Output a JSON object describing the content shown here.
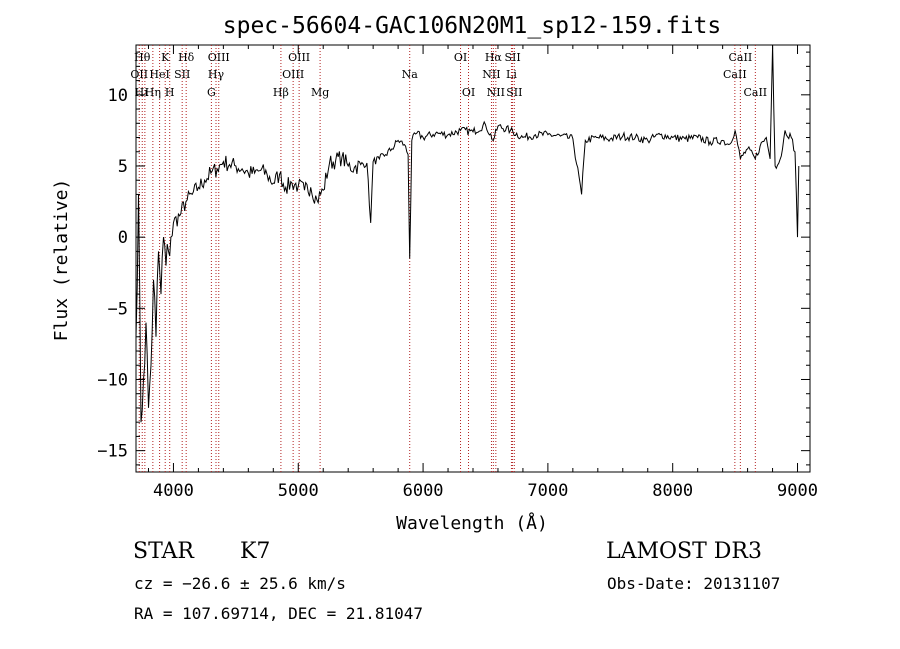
{
  "chart_data": {
    "type": "line",
    "title": "spec-56604-GAC106N20M1_sp12-159.fits",
    "xlabel": "Wavelength (Å)",
    "ylabel": "Flux (relative)",
    "xlim": [
      3700,
      9100
    ],
    "ylim": [
      -16.5,
      13.5
    ],
    "xticks": [
      4000,
      5000,
      6000,
      7000,
      8000,
      9000
    ],
    "yticks": [
      -15,
      -10,
      -5,
      0,
      5,
      10
    ],
    "series": [
      {
        "name": "spectrum",
        "x": [
          3700,
          3720,
          3740,
          3760,
          3780,
          3800,
          3820,
          3840,
          3860,
          3880,
          3900,
          3920,
          3940,
          3960,
          3980,
          4000,
          4050,
          4100,
          4150,
          4200,
          4250,
          4300,
          4350,
          4400,
          4450,
          4500,
          4550,
          4600,
          4650,
          4700,
          4750,
          4800,
          4850,
          4900,
          4950,
          5000,
          5050,
          5100,
          5150,
          5200,
          5250,
          5300,
          5350,
          5400,
          5450,
          5500,
          5550,
          5580,
          5600,
          5650,
          5700,
          5750,
          5800,
          5850,
          5880,
          5893,
          5910,
          5950,
          6000,
          6100,
          6200,
          6300,
          6400,
          6500,
          6563,
          6600,
          6700,
          6800,
          6900,
          7000,
          7100,
          7200,
          7270,
          7300,
          7400,
          7500,
          7600,
          7700,
          7800,
          7900,
          8000,
          8100,
          8200,
          8300,
          8400,
          8450,
          8500,
          8542,
          8600,
          8662,
          8700,
          8750,
          8780,
          8800,
          8820,
          8850,
          8880,
          8900,
          8950,
          8980,
          9000,
          9010
        ],
        "values": [
          -7,
          3,
          -13,
          -10,
          -6,
          -12,
          -9,
          -3,
          -7,
          -1,
          -4,
          0,
          -2,
          -1,
          0,
          1,
          1.5,
          2.5,
          3,
          3.5,
          4,
          4.5,
          4.8,
          5.3,
          5.1,
          5,
          4.8,
          4.5,
          4.5,
          4.7,
          4.4,
          3.8,
          4.4,
          3.5,
          3.8,
          3.6,
          3.3,
          3.5,
          2.6,
          3.3,
          5.2,
          5.4,
          5.6,
          5,
          4.9,
          5.1,
          5.2,
          1,
          5.3,
          5.5,
          5.8,
          6.2,
          6.8,
          6.5,
          5.8,
          -1.5,
          6.8,
          7.3,
          7,
          7.3,
          7.2,
          7.5,
          7.4,
          7.9,
          6.8,
          7.8,
          7.5,
          7,
          7.2,
          7.2,
          7.1,
          6.9,
          3,
          6.8,
          7,
          6.9,
          7.1,
          7,
          6.8,
          7.2,
          7,
          6.9,
          7,
          6.7,
          6.8,
          6.5,
          7.5,
          5.5,
          6.2,
          5.5,
          6.4,
          7,
          5.5,
          13.5,
          5,
          5.2,
          6.2,
          7.5,
          7,
          6,
          0,
          5
        ]
      }
    ],
    "lines": [
      {
        "x": 3726,
        "label": "OII"
      },
      {
        "x": 3750,
        "label": "Hθ"
      },
      {
        "x": 3771,
        "label": "Hι"
      },
      {
        "x": 3835,
        "label": "Hη"
      },
      {
        "x": 3889,
        "label": "HeI"
      },
      {
        "x": 3934,
        "label": "K"
      },
      {
        "x": 3970,
        "label": "H"
      },
      {
        "x": 4070,
        "label": "SII"
      },
      {
        "x": 4102,
        "label": "Hδ"
      },
      {
        "x": 4304,
        "label": "G"
      },
      {
        "x": 4341,
        "label": "Hγ"
      },
      {
        "x": 4363,
        "label": "OIII"
      },
      {
        "x": 4861,
        "label": "Hβ"
      },
      {
        "x": 4959,
        "label": "OIII"
      },
      {
        "x": 5007,
        "label": "OIII"
      },
      {
        "x": 5175,
        "label": "Mg"
      },
      {
        "x": 5893,
        "label": "Na"
      },
      {
        "x": 6300,
        "label": "OI"
      },
      {
        "x": 6364,
        "label": "OI"
      },
      {
        "x": 6548,
        "label": "NII"
      },
      {
        "x": 6563,
        "label": "Hα"
      },
      {
        "x": 6583,
        "label": "NII"
      },
      {
        "x": 6708,
        "label": "Li"
      },
      {
        "x": 6717,
        "label": "SII"
      },
      {
        "x": 6731,
        "label": "SII"
      },
      {
        "x": 8498,
        "label": "CaII"
      },
      {
        "x": 8542,
        "label": "CaII"
      },
      {
        "x": 8662,
        "label": "CaII"
      }
    ],
    "line_labels": [
      {
        "text": "Hθ",
        "x": 3750,
        "row": 0
      },
      {
        "text": "K",
        "x": 3934,
        "row": 0
      },
      {
        "text": "Hδ",
        "x": 4102,
        "row": 0
      },
      {
        "text": "OIII",
        "x": 4363,
        "row": 0
      },
      {
        "text": "OIII",
        "x": 5007,
        "row": 0
      },
      {
        "text": "OI",
        "x": 6300,
        "row": 0
      },
      {
        "text": "Hα",
        "x": 6563,
        "row": 0
      },
      {
        "text": "SII",
        "x": 6717,
        "row": 0
      },
      {
        "text": "CaII",
        "x": 8542,
        "row": 0
      },
      {
        "text": "OII",
        "x": 3726,
        "row": 1
      },
      {
        "text": "HeI",
        "x": 3889,
        "row": 1
      },
      {
        "text": "SII",
        "x": 4070,
        "row": 1
      },
      {
        "text": "Hγ",
        "x": 4341,
        "row": 1
      },
      {
        "text": "OIII",
        "x": 4959,
        "row": 1
      },
      {
        "text": "Na",
        "x": 5893,
        "row": 1
      },
      {
        "text": "NII",
        "x": 6548,
        "row": 1
      },
      {
        "text": "Li",
        "x": 6708,
        "row": 1
      },
      {
        "text": "CaII",
        "x": 8498,
        "row": 1
      },
      {
        "text": "Hι",
        "x": 3745,
        "row": 2
      },
      {
        "text": "Hη",
        "x": 3835,
        "row": 2
      },
      {
        "text": "H",
        "x": 3970,
        "row": 2
      },
      {
        "text": "G",
        "x": 4304,
        "row": 2
      },
      {
        "text": "Hβ",
        "x": 4861,
        "row": 2
      },
      {
        "text": "Mg",
        "x": 5175,
        "row": 2
      },
      {
        "text": "OI",
        "x": 6364,
        "row": 2
      },
      {
        "text": "NII",
        "x": 6583,
        "row": 2
      },
      {
        "text": "SII",
        "x": 6731,
        "row": 2
      },
      {
        "text": "CaII",
        "x": 8662,
        "row": 2
      }
    ],
    "colors": {
      "spectrum": "#000000",
      "lines": "#b22222",
      "axes": "#000000"
    }
  },
  "info": {
    "object_class": "STAR",
    "subclass": "K7",
    "survey": "LAMOST DR3",
    "redshift": "cz = −26.6 ± 25.6 km/s",
    "obs_date": "Obs-Date: 20131107",
    "coords": "RA = 107.69714, DEC =  21.81047"
  }
}
